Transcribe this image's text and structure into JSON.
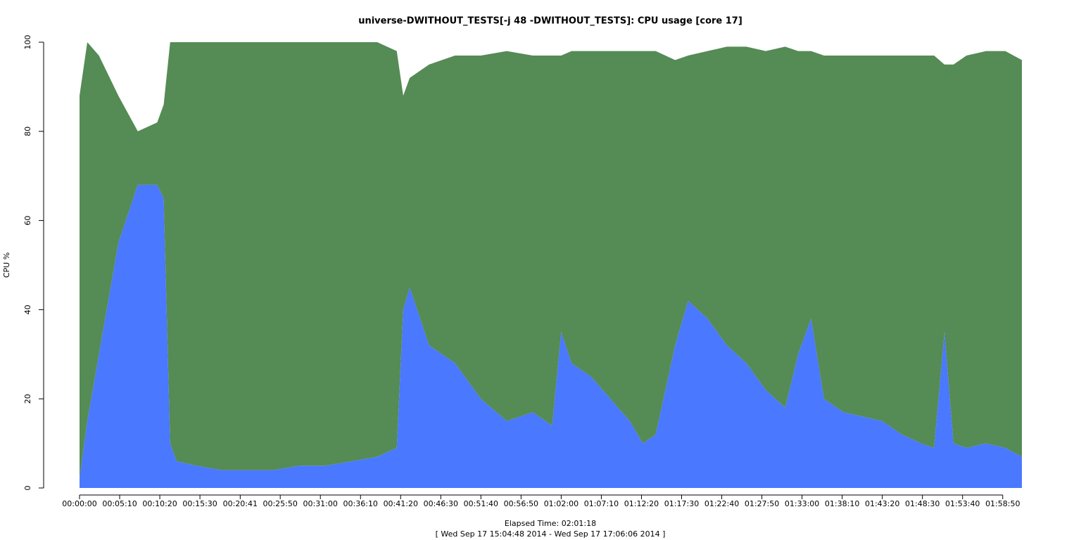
{
  "chart_data": {
    "type": "stacked-area",
    "title": "universe-DWITHOUT_TESTS[-j 48  -DWITHOUT_TESTS]: CPU usage [core 17]",
    "xlabel": "Elapsed Time: 02:01:18",
    "subtitle": "[ Wed Sep 17 15:04:48 2014 - Wed Sep 17 17:06:06 2014 ]",
    "ylabel": "CPU %",
    "x": [
      0,
      60,
      150,
      300,
      450,
      600,
      650,
      700,
      750,
      900,
      1100,
      1300,
      1500,
      1700,
      1900,
      2100,
      2300,
      2450,
      2500,
      2550,
      2700,
      2900,
      3100,
      3300,
      3500,
      3650,
      3720,
      3800,
      3950,
      4100,
      4250,
      4350,
      4450,
      4600,
      4700,
      4850,
      5000,
      5150,
      5300,
      5450,
      5550,
      5650,
      5750,
      5900,
      6050,
      6200,
      6350,
      6500,
      6600,
      6680,
      6750,
      6850,
      7000,
      7150,
      7278
    ],
    "series": [
      {
        "color": "#4a78ff",
        "values": [
          2,
          15,
          30,
          55,
          68,
          68,
          65,
          10,
          6,
          5,
          4,
          4,
          4,
          5,
          5,
          6,
          7,
          9,
          40,
          45,
          32,
          28,
          20,
          15,
          17,
          14,
          35,
          28,
          25,
          20,
          15,
          10,
          12,
          32,
          42,
          38,
          32,
          28,
          22,
          18,
          30,
          38,
          20,
          17,
          16,
          15,
          12,
          10,
          9,
          35,
          10,
          9,
          10,
          9,
          7
        ]
      },
      {
        "color": "#558b55",
        "values": [
          86,
          85,
          67,
          33,
          12,
          14,
          21,
          90,
          94,
          95,
          96,
          96,
          96,
          95,
          95,
          94,
          93,
          89,
          48,
          47,
          63,
          69,
          77,
          83,
          80,
          83,
          62,
          70,
          73,
          78,
          83,
          88,
          86,
          64,
          55,
          60,
          67,
          71,
          76,
          81,
          68,
          60,
          77,
          80,
          81,
          82,
          85,
          87,
          88,
          60,
          85,
          88,
          88,
          89,
          89
        ]
      }
    ],
    "xlim": [
      0,
      7278
    ],
    "xticks": [
      {
        "value": 0,
        "label": "00:00:00"
      },
      {
        "value": 310,
        "label": "00:05:10"
      },
      {
        "value": 620,
        "label": "00:10:20"
      },
      {
        "value": 930,
        "label": "00:15:30"
      },
      {
        "value": 1241,
        "label": "00:20:41"
      },
      {
        "value": 1550,
        "label": "00:25:50"
      },
      {
        "value": 1860,
        "label": "00:31:00"
      },
      {
        "value": 2170,
        "label": "00:36:10"
      },
      {
        "value": 2480,
        "label": "00:41:20"
      },
      {
        "value": 2790,
        "label": "00:46:30"
      },
      {
        "value": 3100,
        "label": "00:51:40"
      },
      {
        "value": 3410,
        "label": "00:56:50"
      },
      {
        "value": 3720,
        "label": "01:02:00"
      },
      {
        "value": 4030,
        "label": "01:07:10"
      },
      {
        "value": 4340,
        "label": "01:12:20"
      },
      {
        "value": 4650,
        "label": "01:17:30"
      },
      {
        "value": 4960,
        "label": "01:22:40"
      },
      {
        "value": 5270,
        "label": "01:27:50"
      },
      {
        "value": 5580,
        "label": "01:33:00"
      },
      {
        "value": 5890,
        "label": "01:38:10"
      },
      {
        "value": 6200,
        "label": "01:43:20"
      },
      {
        "value": 6510,
        "label": "01:48:30"
      },
      {
        "value": 6820,
        "label": "01:53:40"
      },
      {
        "value": 7130,
        "label": "01:58:50"
      }
    ],
    "ylim": [
      0,
      100
    ],
    "yticks": [
      0,
      20,
      40,
      60,
      80,
      100
    ]
  }
}
